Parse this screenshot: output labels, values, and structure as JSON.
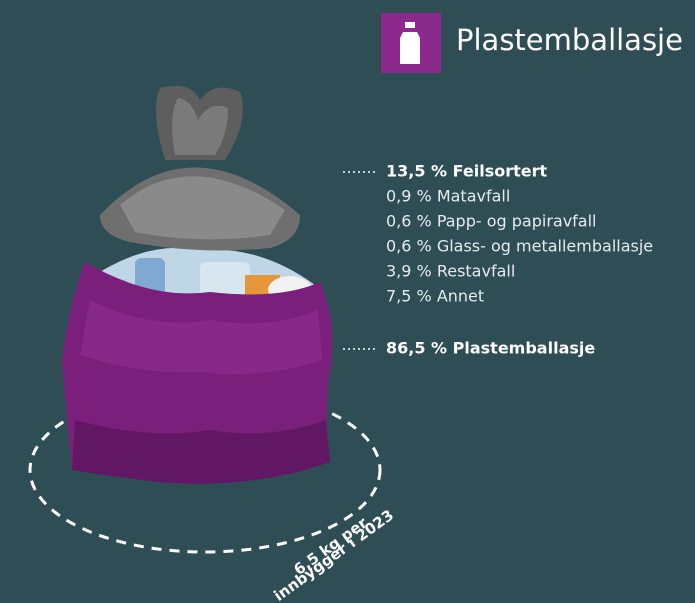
{
  "header": {
    "title": "Plastemballasje"
  },
  "composition": {
    "feilsortert": {
      "label": "13,5 % Feilsortert",
      "items": [
        "0,9 % Matavfall",
        "0,6 % Papp- og papiravfall",
        "0,6 % Glass- og metallemballasje",
        "3,9 % Restavfall",
        "7,5 % Annet"
      ]
    },
    "plastemballasje": {
      "label": "86,5 % Plastemballasje"
    }
  },
  "footer": {
    "lines": [
      "6,5 kg per",
      "innbygger i 2023"
    ]
  }
}
